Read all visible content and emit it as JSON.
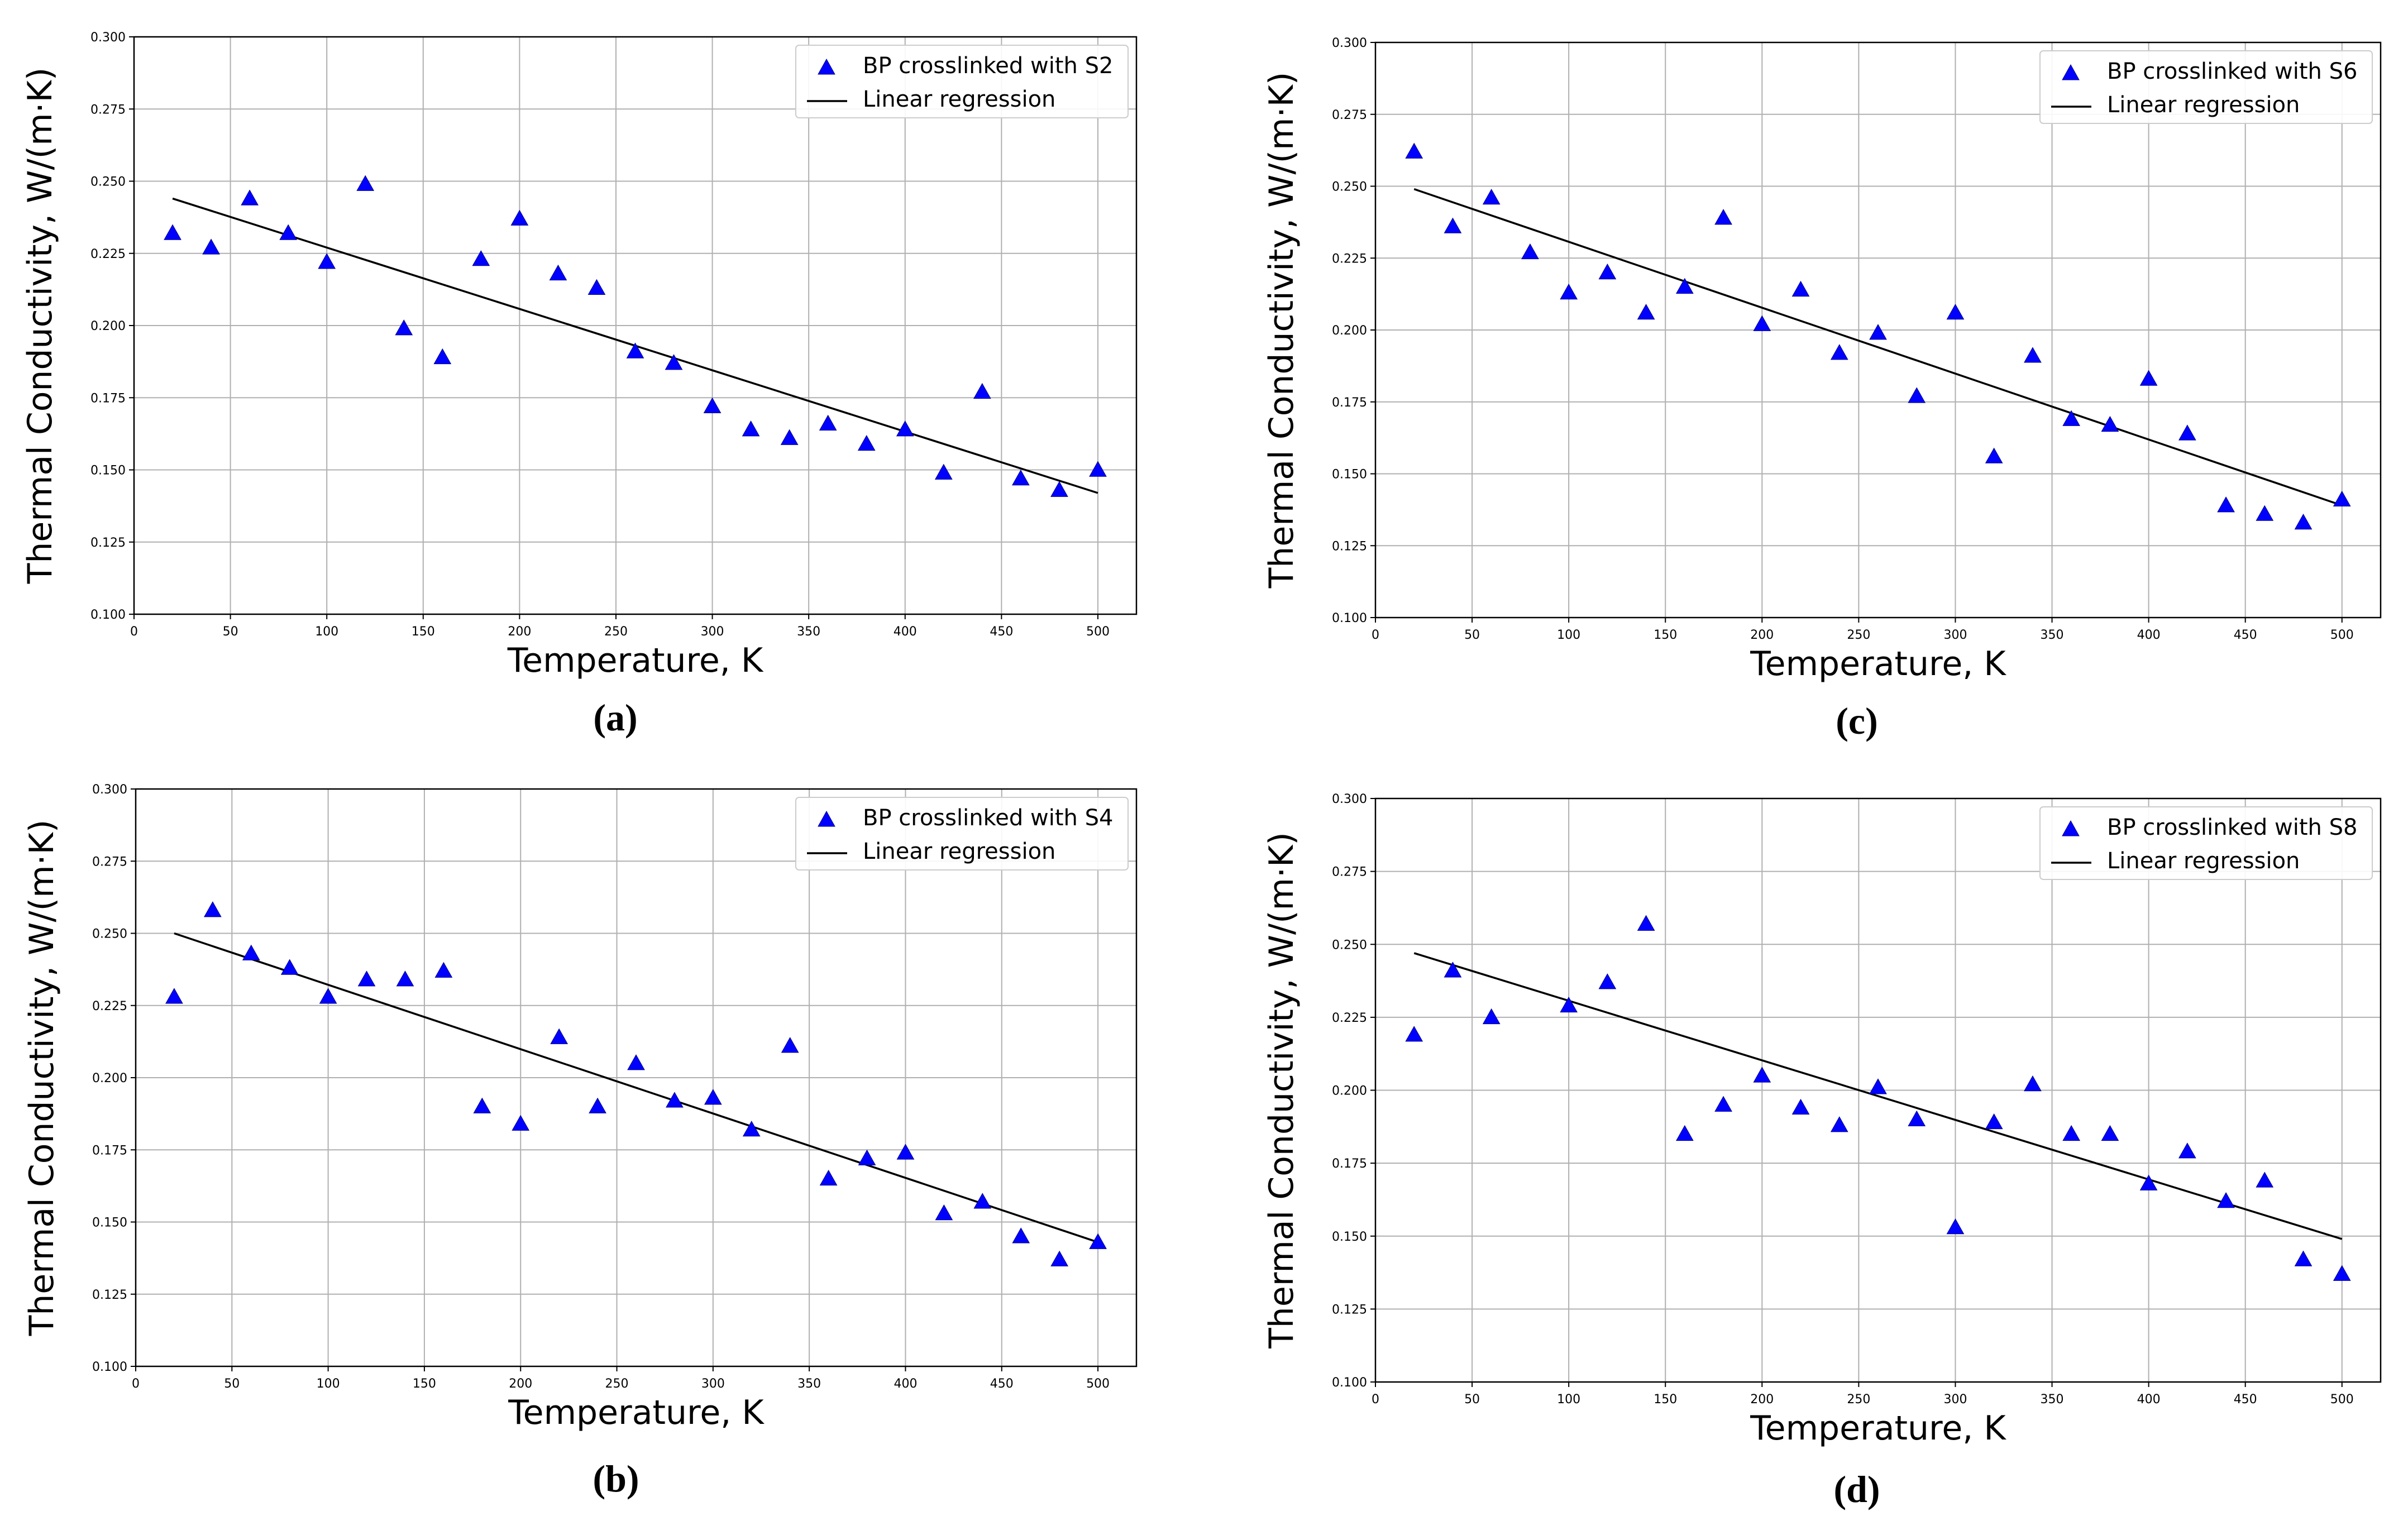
{
  "chart_data": [
    {
      "id": "a",
      "type": "scatter",
      "caption": "(a)",
      "xlabel": "Temperature, K",
      "ylabel": "Thermal Conductivity, W/(m·K)",
      "xlim": [
        0,
        520
      ],
      "ylim": [
        0.1,
        0.3
      ],
      "xticks": [
        "0",
        "50",
        "100",
        "150",
        "200",
        "250",
        "300",
        "350",
        "400",
        "450",
        "500"
      ],
      "yticks": [
        "0.100",
        "0.125",
        "0.150",
        "0.175",
        "0.200",
        "0.225",
        "0.250",
        "0.275",
        "0.300"
      ],
      "grid": true,
      "legend_position": "top-right",
      "series": [
        {
          "name": "BP crosslinked with S2",
          "marker": "triangle",
          "color": "#0000FF",
          "x": [
            20,
            40,
            60,
            80,
            100,
            120,
            140,
            160,
            180,
            200,
            220,
            240,
            260,
            280,
            300,
            320,
            340,
            360,
            380,
            400,
            420,
            440,
            460,
            480,
            500
          ],
          "y": [
            0.232,
            0.227,
            0.244,
            0.232,
            0.222,
            0.249,
            0.199,
            0.189,
            0.223,
            0.237,
            0.218,
            0.213,
            0.191,
            0.187,
            0.172,
            0.164,
            0.161,
            0.166,
            0.159,
            0.164,
            0.149,
            0.177,
            0.147,
            0.143,
            0.15
          ]
        }
      ],
      "regression": {
        "name": "Linear regression",
        "color": "#000000",
        "x": [
          20,
          500
        ],
        "y": [
          0.244,
          0.142
        ]
      }
    },
    {
      "id": "c",
      "type": "scatter",
      "caption": "(c)",
      "xlabel": "Temperature, K",
      "ylabel": "Thermal Conductivity, W/(m·K)",
      "xlim": [
        0,
        520
      ],
      "ylim": [
        0.1,
        0.3
      ],
      "xticks": [
        "0",
        "50",
        "100",
        "150",
        "200",
        "250",
        "300",
        "350",
        "400",
        "450",
        "500"
      ],
      "yticks": [
        "0.100",
        "0.125",
        "0.150",
        "0.175",
        "0.200",
        "0.225",
        "0.250",
        "0.275",
        "0.300"
      ],
      "grid": true,
      "legend_position": "top-right",
      "series": [
        {
          "name": "BP crosslinked with S6",
          "marker": "triangle",
          "color": "#0000FF",
          "x": [
            20,
            40,
            60,
            80,
            100,
            120,
            140,
            160,
            180,
            200,
            220,
            240,
            260,
            280,
            300,
            320,
            340,
            360,
            380,
            400,
            420,
            440,
            460,
            480,
            500
          ],
          "y": [
            0.262,
            0.236,
            0.246,
            0.227,
            0.213,
            0.22,
            0.206,
            0.215,
            0.239,
            0.202,
            0.214,
            0.192,
            0.199,
            0.177,
            0.206,
            0.156,
            0.191,
            0.169,
            0.167,
            0.183,
            0.164,
            0.139,
            0.136,
            0.133,
            0.141
          ]
        }
      ],
      "regression": {
        "name": "Linear regression",
        "color": "#000000",
        "x": [
          20,
          500
        ],
        "y": [
          0.249,
          0.139
        ]
      }
    },
    {
      "id": "b",
      "type": "scatter",
      "caption": "(b)",
      "xlabel": "Temperature, K",
      "ylabel": "Thermal Conductivity, W/(m·K)",
      "xlim": [
        0,
        520
      ],
      "ylim": [
        0.1,
        0.3
      ],
      "xticks": [
        "0",
        "50",
        "100",
        "150",
        "200",
        "250",
        "300",
        "350",
        "400",
        "450",
        "500"
      ],
      "yticks": [
        "0.100",
        "0.125",
        "0.150",
        "0.175",
        "0.200",
        "0.225",
        "0.250",
        "0.275",
        "0.300"
      ],
      "grid": true,
      "legend_position": "top-right",
      "series": [
        {
          "name": "BP crosslinked with S4",
          "marker": "triangle",
          "color": "#0000FF",
          "x": [
            20,
            40,
            60,
            80,
            100,
            120,
            140,
            160,
            180,
            200,
            220,
            240,
            260,
            280,
            300,
            320,
            340,
            360,
            380,
            400,
            420,
            440,
            460,
            480,
            500
          ],
          "y": [
            0.228,
            0.258,
            0.243,
            0.238,
            0.228,
            0.234,
            0.234,
            0.237,
            0.19,
            0.184,
            0.214,
            0.19,
            0.205,
            0.192,
            0.193,
            0.182,
            0.211,
            0.165,
            0.172,
            0.174,
            0.153,
            0.157,
            0.145,
            0.137,
            0.143
          ]
        }
      ],
      "regression": {
        "name": "Linear regression",
        "color": "#000000",
        "x": [
          20,
          500
        ],
        "y": [
          0.25,
          0.143
        ]
      }
    },
    {
      "id": "d",
      "type": "scatter",
      "caption": "(d)",
      "xlabel": "Temperature, K",
      "ylabel": "Thermal Conductivity, W/(m·K)",
      "xlim": [
        0,
        520
      ],
      "ylim": [
        0.1,
        0.3
      ],
      "xticks": [
        "0",
        "50",
        "100",
        "150",
        "200",
        "250",
        "300",
        "350",
        "400",
        "450",
        "500"
      ],
      "yticks": [
        "0.100",
        "0.125",
        "0.150",
        "0.175",
        "0.200",
        "0.225",
        "0.250",
        "0.275",
        "0.300"
      ],
      "grid": true,
      "legend_position": "top-right",
      "series": [
        {
          "name": "BP crosslinked with S8",
          "marker": "triangle",
          "color": "#0000FF",
          "x": [
            20,
            40,
            60,
            100,
            120,
            140,
            160,
            180,
            200,
            220,
            240,
            260,
            280,
            300,
            320,
            340,
            360,
            380,
            400,
            420,
            440,
            460,
            480,
            500
          ],
          "y": [
            0.219,
            0.241,
            0.225,
            0.229,
            0.237,
            0.257,
            0.185,
            0.195,
            0.205,
            0.194,
            0.188,
            0.201,
            0.19,
            0.153,
            0.189,
            0.202,
            0.185,
            0.185,
            0.168,
            0.179,
            0.162,
            0.169,
            0.142,
            0.137
          ]
        }
      ],
      "regression": {
        "name": "Linear regression",
        "color": "#000000",
        "x": [
          20,
          500
        ],
        "y": [
          0.247,
          0.149
        ]
      }
    }
  ]
}
